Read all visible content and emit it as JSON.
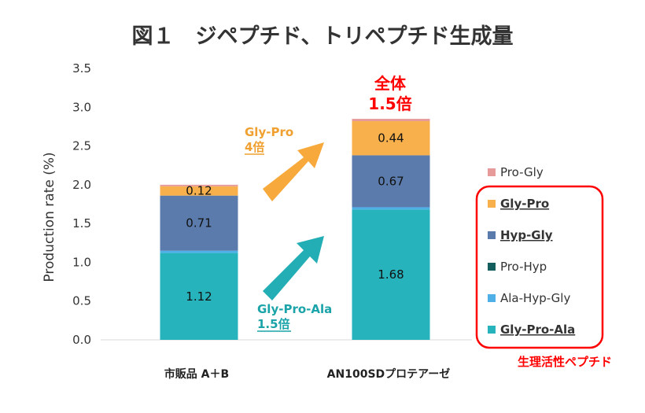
{
  "chart_data": {
    "type": "bar",
    "stacked": true,
    "title": "図１　ジペプチド、トリペプチド生成量",
    "ylabel": "Production rate (%)",
    "xlabel": "",
    "ylim": [
      0,
      3.5
    ],
    "yticks": [
      "0.0",
      "0.5",
      "1.0",
      "1.5",
      "2.0",
      "2.5",
      "3.0",
      "3.5"
    ],
    "grid": false,
    "categories": [
      "市販品 A＋B",
      "AN100SDプロテアーゼ"
    ],
    "series": [
      {
        "name": "Gly-Pro-Ala",
        "color": "#26b3bc",
        "values": [
          1.12,
          1.68
        ],
        "labels": [
          "1.12",
          "1.68"
        ],
        "bold": true
      },
      {
        "name": "Ala-Hyp-Gly",
        "color": "#4fb0e8",
        "values": [
          0.03,
          0.03
        ],
        "labels": [
          "",
          ""
        ],
        "bold": false
      },
      {
        "name": "Pro-Hyp",
        "color": "#155e5e",
        "values": [
          0.0,
          0.0
        ],
        "labels": [
          "",
          ""
        ],
        "bold": false
      },
      {
        "name": "Hyp-Gly",
        "color": "#5a7bab",
        "values": [
          0.71,
          0.67
        ],
        "labels": [
          "0.71",
          "0.67"
        ],
        "bold": true
      },
      {
        "name": "Gly-Pro",
        "color": "#f7b04b",
        "values": [
          0.12,
          0.44
        ],
        "labels": [
          "0.12",
          "0.44"
        ],
        "bold": true
      },
      {
        "name": "Pro-Gly",
        "color": "#e79a9a",
        "values": [
          0.02,
          0.03
        ],
        "labels": [
          "",
          ""
        ],
        "bold": false
      }
    ],
    "legend_position": "right",
    "annotations": {
      "gly_pro": {
        "line1": "Gly-Pro",
        "line2": "4倍",
        "color": "#f0a030"
      },
      "gly_pro_ala": {
        "line1": "Gly-Pro-Ala",
        "line2": "1.5倍",
        "color": "#1aa3a8"
      },
      "total": {
        "line1": "全体",
        "line2": "1.5倍",
        "color": "#ff0000"
      },
      "bioactive": {
        "text": "生理活性ペプチド",
        "color": "#ff0000"
      }
    }
  }
}
